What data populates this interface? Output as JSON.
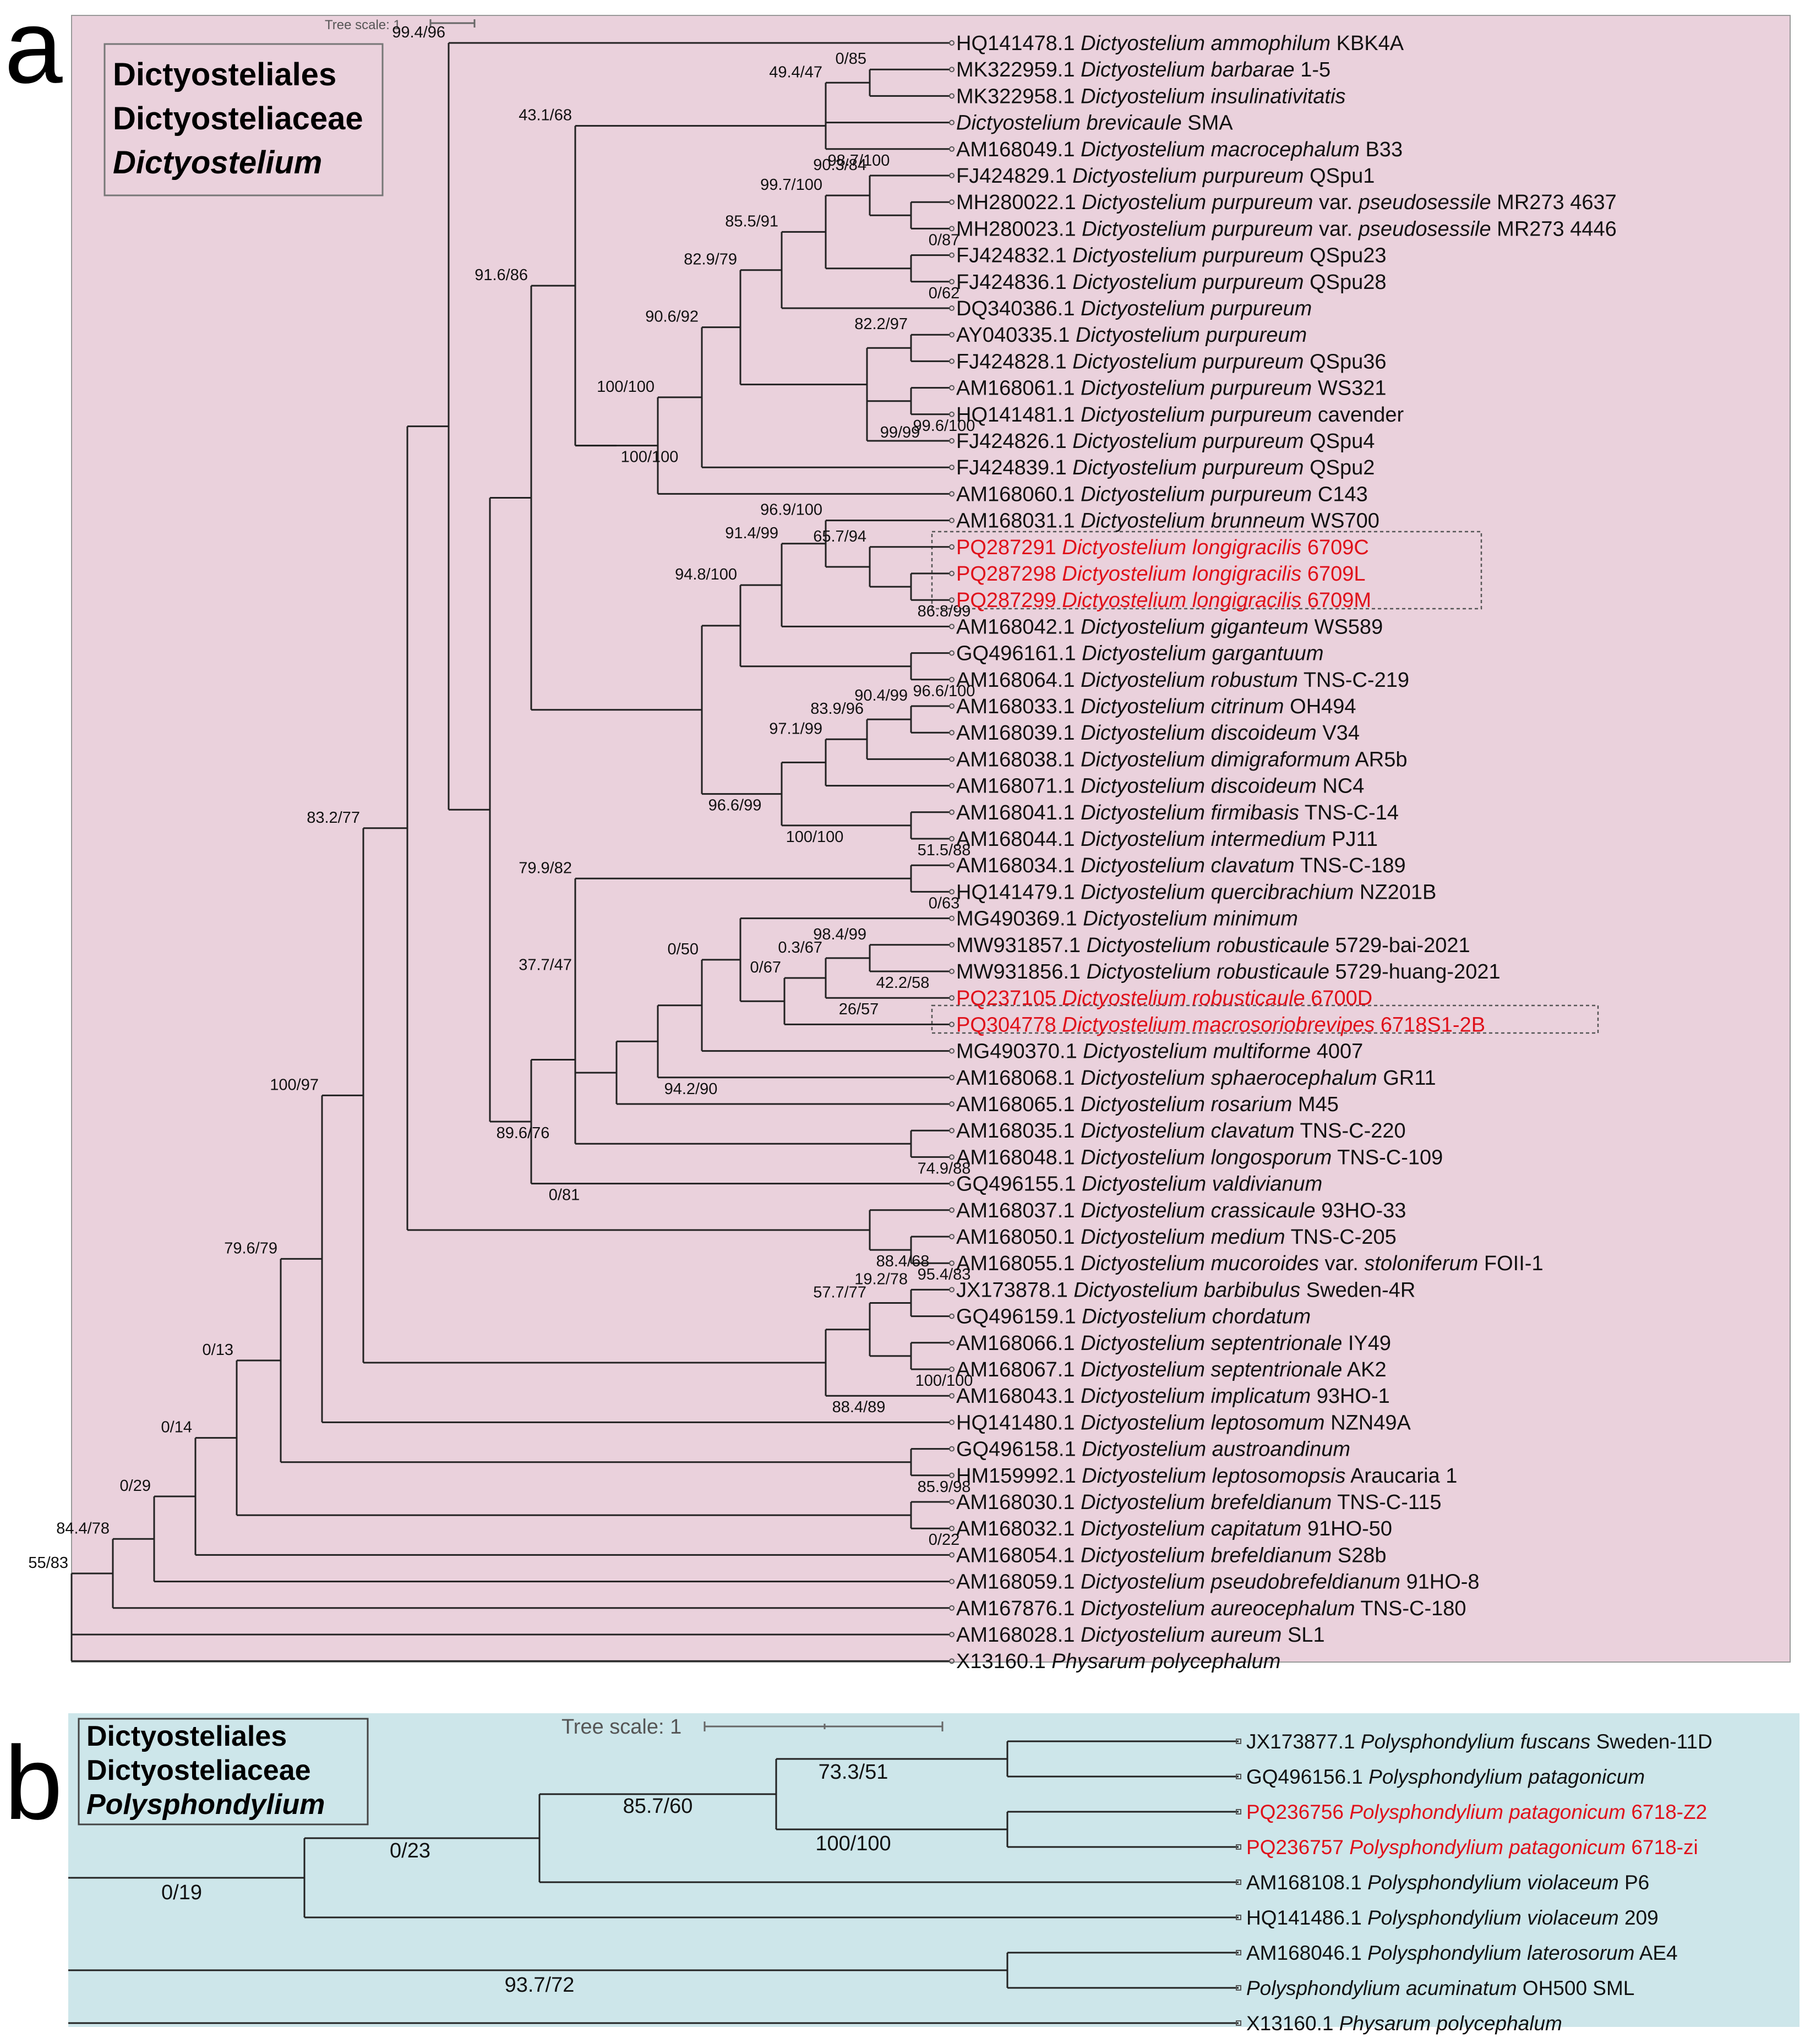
{
  "panel_a": {
    "letter": "a",
    "scale_label": "Tree scale: 1",
    "taxonomy": [
      "Dictyosteliales",
      "Dictyosteliaceae",
      "Dictyostelium"
    ],
    "colors": {
      "background": "#ead1dc",
      "highlight": "#e0101a"
    },
    "leaves": [
      {
        "acc": "HQ141478.1",
        "sp": "Dictyostelium ammophilum",
        "strain": "KBK4A"
      },
      {
        "acc": "MK322959.1",
        "sp": "Dictyostelium barbarae",
        "strain": "1-5"
      },
      {
        "acc": "MK322958.1",
        "sp": "Dictyostelium insulinativitatis",
        "strain": ""
      },
      {
        "acc": "",
        "sp": "Dictyostelium brevicaule",
        "strain": "SMA"
      },
      {
        "acc": "AM168049.1",
        "sp": "Dictyostelium macrocephalum",
        "strain": "B33"
      },
      {
        "acc": "FJ424829.1",
        "sp": "Dictyostelium purpureum",
        "strain": "QSpu1"
      },
      {
        "acc": "MH280022.1",
        "sp": "Dictyostelium purpureum",
        "strain": "var. ",
        "var": "pseudosessile",
        "tail": " MR273 4637"
      },
      {
        "acc": "MH280023.1",
        "sp": "Dictyostelium purpureum",
        "strain": "var. ",
        "var": "pseudosessile",
        "tail": " MR273 4446"
      },
      {
        "acc": "FJ424832.1",
        "sp": "Dictyostelium purpureum",
        "strain": "QSpu23"
      },
      {
        "acc": "FJ424836.1",
        "sp": "Dictyostelium purpureum",
        "strain": "QSpu28"
      },
      {
        "acc": "DQ340386.1",
        "sp": "Dictyostelium purpureum",
        "strain": ""
      },
      {
        "acc": "AY040335.1",
        "sp": "Dictyostelium purpureum",
        "strain": ""
      },
      {
        "acc": "FJ424828.1",
        "sp": "Dictyostelium purpureum",
        "strain": "QSpu36"
      },
      {
        "acc": "AM168061.1",
        "sp": "Dictyostelium purpureum",
        "strain": "WS321"
      },
      {
        "acc": "HQ141481.1",
        "sp": "Dictyostelium purpureum",
        "strain": "cavender"
      },
      {
        "acc": "FJ424826.1",
        "sp": "Dictyostelium purpureum",
        "strain": "QSpu4"
      },
      {
        "acc": "FJ424839.1",
        "sp": "Dictyostelium purpureum",
        "strain": "QSpu2"
      },
      {
        "acc": "AM168060.1",
        "sp": "Dictyostelium purpureum",
        "strain": "C143"
      },
      {
        "acc": "AM168031.1",
        "sp": "Dictyostelium brunneum",
        "strain": "WS700"
      },
      {
        "acc": "PQ287291",
        "sp": "Dictyostelium longigracilis",
        "strain": "6709C",
        "hl": true
      },
      {
        "acc": "PQ287298",
        "sp": "Dictyostelium longigracilis",
        "strain": "6709L",
        "hl": true
      },
      {
        "acc": "PQ287299",
        "sp": "Dictyostelium longigracilis",
        "strain": "6709M",
        "hl": true
      },
      {
        "acc": "AM168042.1",
        "sp": "Dictyostelium giganteum",
        "strain": "WS589"
      },
      {
        "acc": "GQ496161.1",
        "sp": "Dictyostelium gargantuum",
        "strain": ""
      },
      {
        "acc": "AM168064.1",
        "sp": "Dictyostelium robustum",
        "strain": "TNS-C-219"
      },
      {
        "acc": "AM168033.1",
        "sp": "Dictyostelium citrinum",
        "strain": "OH494"
      },
      {
        "acc": "AM168039.1",
        "sp": "Dictyostelium discoideum",
        "strain": "V34"
      },
      {
        "acc": "AM168038.1",
        "sp": "Dictyostelium dimigraformum",
        "strain": "AR5b"
      },
      {
        "acc": "AM168071.1",
        "sp": "Dictyostelium discoideum",
        "strain": "NC4"
      },
      {
        "acc": "AM168041.1",
        "sp": "Dictyostelium firmibasis",
        "strain": "TNS-C-14"
      },
      {
        "acc": "AM168044.1",
        "sp": "Dictyostelium intermedium",
        "strain": "PJ11"
      },
      {
        "acc": "AM168034.1",
        "sp": "Dictyostelium clavatum",
        "strain": "TNS-C-189"
      },
      {
        "acc": "HQ141479.1",
        "sp": "Dictyostelium quercibrachium",
        "strain": "NZ201B"
      },
      {
        "acc": "MG490369.1",
        "sp": "Dictyostelium minimum",
        "strain": ""
      },
      {
        "acc": "MW931857.1",
        "sp": "Dictyostelium robusticaule",
        "strain": "5729-bai-2021"
      },
      {
        "acc": "MW931856.1",
        "sp": "Dictyostelium robusticaule",
        "strain": "5729-huang-2021"
      },
      {
        "acc": "PQ237105",
        "sp": "Dictyostelium robusticaule",
        "strain": "6700D",
        "hl": true
      },
      {
        "acc": "PQ304778",
        "sp": "Dictyostelium macrosoriobrevipes",
        "strain": "6718S1-2B",
        "hl": true
      },
      {
        "acc": "MG490370.1",
        "sp": "Dictyostelium multiforme",
        "strain": "4007"
      },
      {
        "acc": "AM168068.1",
        "sp": "Dictyostelium sphaerocephalum",
        "strain": "GR11"
      },
      {
        "acc": "AM168065.1",
        "sp": "Dictyostelium rosarium",
        "strain": "M45"
      },
      {
        "acc": "AM168035.1",
        "sp": "Dictyostelium clavatum",
        "strain": "TNS-C-220"
      },
      {
        "acc": "AM168048.1",
        "sp": "Dictyostelium longosporum",
        "strain": "TNS-C-109"
      },
      {
        "acc": "GQ496155.1",
        "sp": "Dictyostelium valdivianum",
        "strain": ""
      },
      {
        "acc": "AM168037.1",
        "sp": "Dictyostelium crassicaule",
        "strain": "93HO-33"
      },
      {
        "acc": "AM168050.1",
        "sp": "Dictyostelium medium",
        "strain": "TNS-C-205"
      },
      {
        "acc": "AM168055.1",
        "sp": "Dictyostelium mucoroides",
        "strain": "var. ",
        "var": "stoloniferum",
        "tail": " FOII-1"
      },
      {
        "acc": "JX173878.1",
        "sp": "Dictyostelium barbibulus",
        "strain": "Sweden-4R"
      },
      {
        "acc": "GQ496159.1",
        "sp": "Dictyostelium chordatum",
        "strain": ""
      },
      {
        "acc": "AM168066.1",
        "sp": "Dictyostelium septentrionale",
        "strain": "IY49"
      },
      {
        "acc": "AM168067.1",
        "sp": "Dictyostelium septentrionale",
        "strain": "AK2"
      },
      {
        "acc": "AM168043.1",
        "sp": "Dictyostelium implicatum",
        "strain": "93HO-1"
      },
      {
        "acc": "HQ141480.1",
        "sp": "Dictyostelium leptosomum",
        "strain": "NZN49A"
      },
      {
        "acc": "GQ496158.1",
        "sp": "Dictyostelium austroandinum",
        "strain": ""
      },
      {
        "acc": "HM159992.1",
        "sp": "Dictyostelium leptosomopsis",
        "strain": "Araucaria 1"
      },
      {
        "acc": "AM168030.1",
        "sp": "Dictyostelium brefeldianum",
        "strain": "TNS-C-115"
      },
      {
        "acc": "AM168032.1",
        "sp": "Dictyostelium capitatum",
        "strain": "91HO-50"
      },
      {
        "acc": "AM168054.1",
        "sp": "Dictyostelium brefeldianum",
        "strain": "S28b"
      },
      {
        "acc": "AM168059.1",
        "sp": "Dictyostelium pseudobrefeldianum",
        "strain": "91HO-8"
      },
      {
        "acc": "AM167876.1",
        "sp": "Dictyostelium aureocephalum",
        "strain": "TNS-C-180"
      },
      {
        "acc": "AM168028.1",
        "sp": "Dictyostelium aureum",
        "strain": "SL1"
      },
      {
        "acc": "X13160.1",
        "sp": "Physarum polycephalum",
        "strain": ""
      }
    ],
    "support": [
      "0/85",
      "49.4/47",
      "98.7/100",
      "90.3/84",
      "99.7/100",
      "0/87",
      "85.5/91",
      "0/62",
      "82.9/79",
      "82.2/97",
      "90.6/92",
      "99/99",
      "99.6/100",
      "100/100",
      "100/100",
      "43.1/68",
      "96.9/100",
      "65.7/94",
      "91.4/99",
      "86.8/99",
      "94.8/100",
      "96.6/100",
      "90.4/99",
      "83.9/96",
      "97.1/99",
      "100/100",
      "51.5/88",
      "96.6/99",
      "91.6/86",
      "99.4/96",
      "0/63",
      "0.3/67",
      "98.4/99",
      "42.2/58",
      "0/67",
      "26/57",
      "0/50",
      "79.9/82",
      "94.2/90",
      "37.7/47",
      "74.9/88",
      "0/81",
      "89.6/76",
      "88.4/68",
      "95.4/83",
      "19.2/78",
      "57.7/77",
      "100/100",
      "88.4/89",
      "83.2/77",
      "100/97",
      "79.6/79",
      "0/13",
      "85.9/98",
      "0/14",
      "0/22",
      "0/29",
      "84.4/78",
      "55/83"
    ]
  },
  "panel_b": {
    "letter": "b",
    "scale_label": "Tree scale: 1",
    "taxonomy": [
      "Dictyosteliales",
      "Dictyosteliaceae",
      "Polysphondylium"
    ],
    "colors": {
      "background": "#cde6ea",
      "highlight": "#e0101a"
    },
    "leaves": [
      {
        "acc": "JX173877.1",
        "sp": "Polysphondylium fuscans",
        "strain": "Sweden-11D"
      },
      {
        "acc": "GQ496156.1",
        "sp": "Polysphondylium patagonicum",
        "strain": ""
      },
      {
        "acc": "PQ236756",
        "sp": "Polysphondylium patagonicum",
        "strain": "6718-Z2",
        "hl": true
      },
      {
        "acc": "PQ236757",
        "sp": "Polysphondylium patagonicum",
        "strain": "6718-zi",
        "hl": true
      },
      {
        "acc": "AM168108.1",
        "sp": "Polysphondylium violaceum",
        "strain": "P6"
      },
      {
        "acc": "HQ141486.1",
        "sp": "Polysphondylium violaceum",
        "strain": "209"
      },
      {
        "acc": "AM168046.1",
        "sp": "Polysphondylium laterosorum",
        "strain": "AE4"
      },
      {
        "acc": "",
        "sp": "Polysphondylium acuminatum",
        "strain": "OH500 SML"
      },
      {
        "acc": "X13160.1",
        "sp": "Physarum polycephalum",
        "strain": ""
      }
    ],
    "support": [
      "73.3/51",
      "100/100",
      "85.7/60",
      "0/23",
      "0/19",
      "93.7/72"
    ]
  }
}
